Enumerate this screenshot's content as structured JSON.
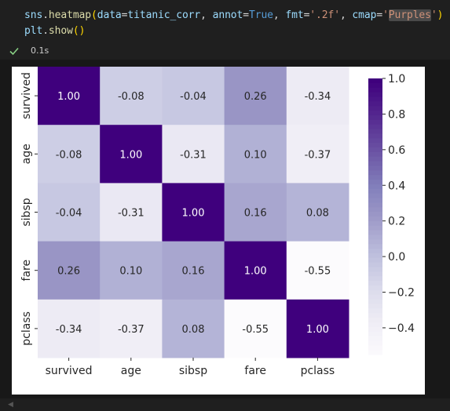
{
  "code": {
    "line1": {
      "module": "sns",
      "dot": ".",
      "func": "heatmap",
      "open": "(",
      "p1": "data",
      "eq": "=",
      "v1": "titanic_corr",
      "sep": ", ",
      "p2": "annot",
      "v2": "True",
      "p3": "fmt",
      "v3": "'.2f'",
      "p4": "cmap",
      "q1": "'",
      "v4": "Purples",
      "q2": "'",
      "close": ")"
    },
    "line2": {
      "module": "plt",
      "func": "show",
      "parens": "()"
    }
  },
  "execution": {
    "status_icon": "check-icon",
    "time": "0.1s"
  },
  "chart_data": {
    "type": "heatmap",
    "rows": [
      "survived",
      "age",
      "sibsp",
      "fare",
      "pclass"
    ],
    "cols": [
      "survived",
      "age",
      "sibsp",
      "fare",
      "pclass"
    ],
    "values": [
      [
        1.0,
        -0.08,
        -0.04,
        0.26,
        -0.34
      ],
      [
        -0.08,
        1.0,
        -0.31,
        0.1,
        -0.37
      ],
      [
        -0.04,
        -0.31,
        1.0,
        0.16,
        0.08
      ],
      [
        0.26,
        0.1,
        0.16,
        1.0,
        -0.55
      ],
      [
        -0.34,
        -0.37,
        0.08,
        -0.55,
        1.0
      ]
    ],
    "annotations": [
      [
        "1.00",
        "-0.08",
        "-0.04",
        "0.26",
        "-0.34"
      ],
      [
        "-0.08",
        "1.00",
        "-0.31",
        "0.10",
        "-0.37"
      ],
      [
        "-0.04",
        "-0.31",
        "1.00",
        "0.16",
        "0.08"
      ],
      [
        "0.26",
        "0.10",
        "0.16",
        "1.00",
        "-0.55"
      ],
      [
        "-0.34",
        "-0.37",
        "0.08",
        "-0.55",
        "1.00"
      ]
    ],
    "colormap": "Purples",
    "vmin": -0.55,
    "vmax": 1.0,
    "colorbar_ticks": [
      1.0,
      0.8,
      0.6,
      0.4,
      0.2,
      0.0,
      -0.2,
      -0.4
    ],
    "colorbar_tick_labels": [
      "1.0",
      "0.8",
      "0.6",
      "0.4",
      "0.2",
      "0.0",
      "−0.2",
      "−0.4"
    ],
    "title": "",
    "xlabel": "",
    "ylabel": ""
  }
}
